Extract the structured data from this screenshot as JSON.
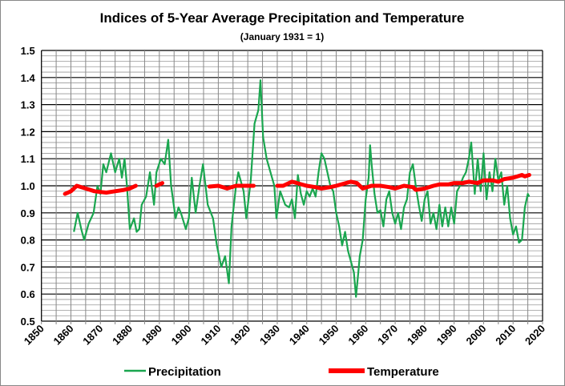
{
  "chart_data": {
    "type": "line",
    "title": "Indices of 5-Year Average Precipitation  and Temperature",
    "subtitle": "(January 1931 = 1)",
    "xlabel": "",
    "ylabel": "",
    "xlim": [
      1850,
      2020
    ],
    "ylim": [
      0.5,
      1.5
    ],
    "x_ticks": [
      "1850",
      "1860",
      "1870",
      "1880",
      "1890",
      "1900",
      "1910",
      "1920",
      "1930",
      "1940",
      "1950",
      "1960",
      "1970",
      "1980",
      "1990",
      "2000",
      "2010",
      "2020"
    ],
    "y_ticks": [
      "0.5",
      "0.6",
      "0.7",
      "0.8",
      "0.9",
      "1.0",
      "1.1",
      "1.2",
      "1.3",
      "1.4",
      "1.5"
    ],
    "grid": true,
    "legend_placement": "bottom",
    "colors": {
      "precipitation": "#1aa64f",
      "temperature": "#ff0000"
    },
    "series": [
      {
        "name": "Precipitation",
        "points": [
          [
            1861,
            0.83
          ],
          [
            1862.3,
            0.9
          ],
          [
            1863.5,
            0.84
          ],
          [
            1864.5,
            0.8
          ],
          [
            1866,
            0.86
          ],
          [
            1867.7,
            0.9
          ],
          [
            1869,
            1.0
          ],
          [
            1870,
            0.97
          ],
          [
            1871,
            1.08
          ],
          [
            1872,
            1.05
          ],
          [
            1873.6,
            1.12
          ],
          [
            1875,
            1.05
          ],
          [
            1876.4,
            1.1
          ],
          [
            1877.3,
            1.03
          ],
          [
            1878.2,
            1.1
          ],
          [
            1879,
            1.0
          ],
          [
            1880,
            0.84
          ],
          [
            1881.4,
            0.88
          ],
          [
            1882.3,
            0.83
          ],
          [
            1883.2,
            0.84
          ],
          [
            1884,
            0.93
          ],
          [
            1885.5,
            0.96
          ],
          [
            1886.8,
            1.05
          ],
          [
            1888.2,
            0.93
          ],
          [
            1889,
            1.05
          ],
          [
            1890.5,
            1.1
          ],
          [
            1891.8,
            1.08
          ],
          [
            1893,
            1.17
          ],
          [
            1894,
            1.0
          ],
          [
            1895.5,
            0.88
          ],
          [
            1896.5,
            0.92
          ],
          [
            1897.3,
            0.9
          ],
          [
            1899,
            0.84
          ],
          [
            1900,
            0.88
          ],
          [
            1901,
            1.03
          ],
          [
            1902.3,
            0.9
          ],
          [
            1903.6,
            1.0
          ],
          [
            1904.8,
            1.08
          ],
          [
            1906.4,
            0.93
          ],
          [
            1908.2,
            0.88
          ],
          [
            1909.5,
            0.78
          ],
          [
            1911,
            0.7
          ],
          [
            1912.3,
            0.74
          ],
          [
            1913.6,
            0.64
          ],
          [
            1914.5,
            0.85
          ],
          [
            1916,
            1.0
          ],
          [
            1916.8,
            1.05
          ],
          [
            1918.6,
            0.98
          ],
          [
            1919.5,
            0.88
          ],
          [
            1921,
            1.02
          ],
          [
            1922.3,
            1.23
          ],
          [
            1923.6,
            1.28
          ],
          [
            1924.3,
            1.39
          ],
          [
            1925.2,
            1.18
          ],
          [
            1926.4,
            1.1
          ],
          [
            1927.7,
            1.05
          ],
          [
            1929,
            1.0
          ],
          [
            1929.7,
            0.88
          ],
          [
            1931,
            0.98
          ],
          [
            1932.7,
            0.93
          ],
          [
            1934,
            0.92
          ],
          [
            1935,
            0.95
          ],
          [
            1936,
            0.88
          ],
          [
            1937,
            1.04
          ],
          [
            1938,
            0.97
          ],
          [
            1939,
            0.93
          ],
          [
            1940,
            0.98
          ],
          [
            1941,
            0.96
          ],
          [
            1942,
            0.99
          ],
          [
            1943,
            0.96
          ],
          [
            1944,
            1.05
          ],
          [
            1945,
            1.12
          ],
          [
            1946,
            1.1
          ],
          [
            1947,
            1.05
          ],
          [
            1948,
            1.0
          ],
          [
            1949,
            0.98
          ],
          [
            1950,
            0.9
          ],
          [
            1951,
            0.85
          ],
          [
            1952,
            0.78
          ],
          [
            1953,
            0.83
          ],
          [
            1954,
            0.76
          ],
          [
            1955,
            0.72
          ],
          [
            1956,
            0.68
          ],
          [
            1956.7,
            0.59
          ],
          [
            1957.5,
            0.68
          ],
          [
            1958,
            0.74
          ],
          [
            1959,
            0.8
          ],
          [
            1960,
            0.95
          ],
          [
            1961,
            1.03
          ],
          [
            1961.5,
            1.15
          ],
          [
            1962,
            1.08
          ],
          [
            1963,
            0.97
          ],
          [
            1964,
            0.9
          ],
          [
            1965,
            0.91
          ],
          [
            1966,
            0.85
          ],
          [
            1967,
            0.95
          ],
          [
            1968,
            0.98
          ],
          [
            1969,
            0.9
          ],
          [
            1970,
            0.86
          ],
          [
            1971,
            0.9
          ],
          [
            1972,
            0.84
          ],
          [
            1973,
            0.92
          ],
          [
            1974,
            0.95
          ],
          [
            1975,
            1.05
          ],
          [
            1976,
            1.08
          ],
          [
            1977,
            1.0
          ],
          [
            1978,
            0.93
          ],
          [
            1979,
            0.87
          ],
          [
            1980,
            0.95
          ],
          [
            1981,
            0.98
          ],
          [
            1982,
            0.86
          ],
          [
            1983,
            0.9
          ],
          [
            1984,
            0.84
          ],
          [
            1985,
            0.93
          ],
          [
            1986,
            0.85
          ],
          [
            1987,
            0.92
          ],
          [
            1988,
            0.85
          ],
          [
            1989,
            0.92
          ],
          [
            1990,
            0.86
          ],
          [
            1991,
            0.98
          ],
          [
            1992,
            1.0
          ],
          [
            1993,
            1.03
          ],
          [
            1994,
            1.05
          ],
          [
            1995,
            1.1
          ],
          [
            1995.8,
            1.16
          ],
          [
            1996.5,
            1.05
          ],
          [
            1997,
            0.97
          ],
          [
            1998,
            1.1
          ],
          [
            1999,
            0.98
          ],
          [
            2000,
            1.12
          ],
          [
            2001,
            0.95
          ],
          [
            2002,
            1.05
          ],
          [
            2003,
            0.98
          ],
          [
            2004,
            1.1
          ],
          [
            2005,
            1.02
          ],
          [
            2006,
            1.05
          ],
          [
            2007,
            0.93
          ],
          [
            2008,
            1.0
          ],
          [
            2009,
            0.88
          ],
          [
            2010,
            0.82
          ],
          [
            2011,
            0.85
          ],
          [
            2012,
            0.79
          ],
          [
            2013,
            0.8
          ],
          [
            2014,
            0.92
          ],
          [
            2015,
            0.97
          ],
          [
            2015.5,
            0.96
          ]
        ]
      },
      {
        "name": "Temperature",
        "segments": [
          [
            [
              1858,
              0.97
            ],
            [
              1860,
              0.98
            ],
            [
              1862,
              1.0
            ],
            [
              1865,
              0.99
            ],
            [
              1868,
              0.98
            ],
            [
              1872,
              0.975
            ],
            [
              1875,
              0.98
            ],
            [
              1878,
              0.985
            ],
            [
              1880,
              0.99
            ],
            [
              1882,
              1.0
            ]
          ],
          [
            [
              1889,
              1.0
            ],
            [
              1891,
              1.01
            ]
          ],
          [
            [
              1907,
              0.997
            ],
            [
              1910,
              1.0
            ],
            [
              1913,
              0.99
            ],
            [
              1916,
              1.0
            ],
            [
              1919,
              1.0
            ],
            [
              1922,
              1.0
            ]
          ],
          [
            [
              1930,
              1.0
            ],
            [
              1932,
              1.0
            ],
            [
              1935,
              1.015
            ],
            [
              1940,
              1.0
            ],
            [
              1943,
              0.995
            ],
            [
              1945,
              0.99
            ],
            [
              1948,
              0.995
            ],
            [
              1950,
              1.0
            ],
            [
              1955,
              1.015
            ],
            [
              1957,
              1.01
            ],
            [
              1959,
              0.99
            ],
            [
              1962,
              1.0
            ],
            [
              1965,
              1.0
            ],
            [
              1968,
              0.995
            ],
            [
              1970,
              0.99
            ],
            [
              1973,
              1.0
            ],
            [
              1976,
              0.995
            ],
            [
              1977,
              0.985
            ],
            [
              1980,
              0.99
            ],
            [
              1983,
              1.0
            ],
            [
              1985,
              1.005
            ],
            [
              1988,
              1.005
            ],
            [
              1990,
              1.01
            ],
            [
              1993,
              1.01
            ],
            [
              1995,
              1.015
            ],
            [
              1998,
              1.01
            ],
            [
              2000,
              1.02
            ],
            [
              2003,
              1.02
            ],
            [
              2005,
              1.015
            ],
            [
              2007,
              1.025
            ],
            [
              2010,
              1.03
            ],
            [
              2013,
              1.04
            ],
            [
              2014,
              1.035
            ],
            [
              2015.5,
              1.04
            ]
          ]
        ]
      }
    ]
  }
}
